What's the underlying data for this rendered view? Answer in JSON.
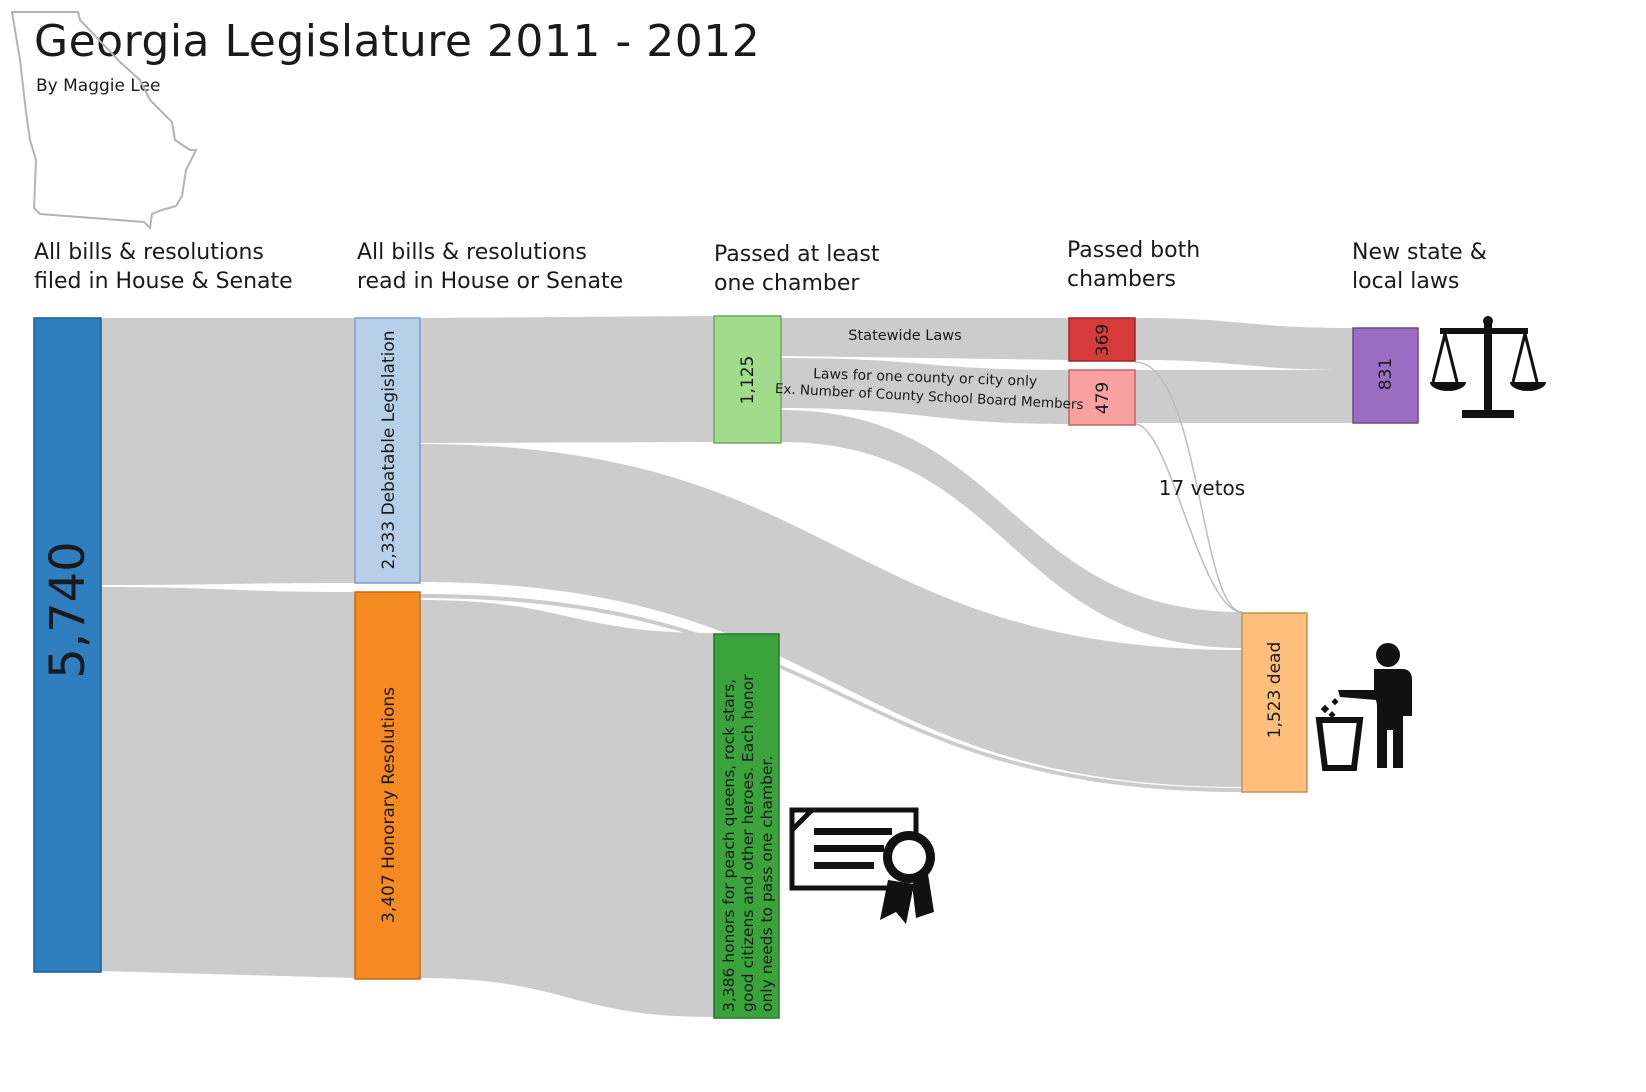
{
  "title": "Georgia Legislature 2011 - 2012",
  "byline": "By Maggie Lee",
  "stages": [
    "All bills & resolutions\nfiled in House & Senate",
    "All bills & resolutions\nread in House or Senate",
    "Passed at least\none chamber",
    "Passed both\nchambers",
    "New state &\nlocal laws"
  ],
  "nodes": {
    "filed": {
      "label": "5,740",
      "color": "#2f7fc0"
    },
    "debatable": {
      "label": "2,333 Debatable Legislation",
      "color": "#b8cfea"
    },
    "honorary": {
      "label": "3,407 Honorary Resolutions",
      "color": "#f58a22"
    },
    "passed_one": {
      "label": "1,125",
      "color": "#a0dc8c"
    },
    "honors": {
      "label": "3,386 honors for peach queens, rock stars,\ngood citizens and other heroes. Each honor\nonly needs to pass one chamber.",
      "color": "#3aa33c"
    },
    "statewide": {
      "label": "369",
      "color": "#d63a3a"
    },
    "local": {
      "label": "479",
      "color": "#f9a0a0"
    },
    "laws": {
      "label": "831",
      "color": "#9b6dc2"
    },
    "dead": {
      "label": "1,523 dead",
      "color": "#fdbf7b"
    }
  },
  "flow_labels": {
    "statewide": "Statewide Laws",
    "local_1": "Laws for one county or city only",
    "local_2": "Ex. Number of County School Board Members",
    "vetos": "17 vetos"
  },
  "icons": [
    "georgia-outline-icon",
    "scales-icon",
    "trash-person-icon",
    "certificate-icon"
  ],
  "colors": {
    "link": "#cccccc"
  }
}
